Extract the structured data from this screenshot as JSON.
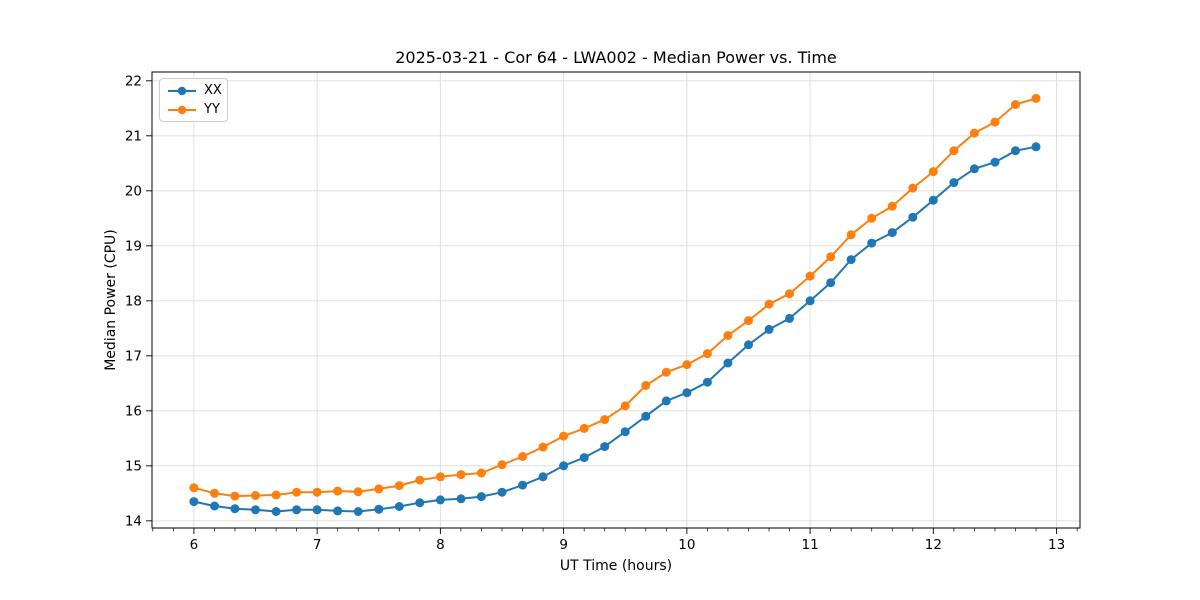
{
  "chart_data": {
    "type": "line",
    "title": "2025-03-21 - Cor 64 - LWA002 - Median Power vs. Time",
    "xlabel": "UT Time (hours)",
    "ylabel": "Median Power (CPU)",
    "xlim": [
      5.66,
      13.19
    ],
    "ylim": [
      13.87,
      22.16
    ],
    "x_ticks": [
      6,
      7,
      8,
      9,
      10,
      11,
      12,
      13
    ],
    "y_ticks": [
      14,
      15,
      16,
      17,
      18,
      19,
      20,
      21,
      22
    ],
    "x_minor_step": 0.166667,
    "grid": true,
    "grid_color": "#dcdcdc",
    "legend_position": "upper-left",
    "x": [
      6.0,
      6.167,
      6.333,
      6.5,
      6.667,
      6.833,
      7.0,
      7.167,
      7.333,
      7.5,
      7.667,
      7.833,
      8.0,
      8.167,
      8.333,
      8.5,
      8.667,
      8.833,
      9.0,
      9.167,
      9.333,
      9.5,
      9.667,
      9.833,
      10.0,
      10.167,
      10.333,
      10.5,
      10.667,
      10.833,
      11.0,
      11.167,
      11.333,
      11.5,
      11.667,
      11.833,
      12.0,
      12.167,
      12.333,
      12.5,
      12.667,
      12.833
    ],
    "series": [
      {
        "name": "XX",
        "color": "#1f77b4",
        "values": [
          14.35,
          14.27,
          14.22,
          14.2,
          14.17,
          14.2,
          14.2,
          14.18,
          14.17,
          14.21,
          14.26,
          14.33,
          14.38,
          14.4,
          14.44,
          14.52,
          14.65,
          14.8,
          15.0,
          15.15,
          15.35,
          15.62,
          15.9,
          16.18,
          16.33,
          16.52,
          16.87,
          17.2,
          17.48,
          17.68,
          18.0,
          18.33,
          18.75,
          19.05,
          19.24,
          19.52,
          19.83,
          20.15,
          20.4,
          20.52,
          20.73,
          20.8
        ]
      },
      {
        "name": "YY",
        "color": "#ff7f0e",
        "values": [
          14.6,
          14.5,
          14.45,
          14.46,
          14.47,
          14.52,
          14.52,
          14.54,
          14.53,
          14.58,
          14.64,
          14.74,
          14.8,
          14.84,
          14.87,
          15.02,
          15.17,
          15.34,
          15.54,
          15.68,
          15.84,
          16.09,
          16.46,
          16.7,
          16.84,
          17.04,
          17.37,
          17.64,
          17.94,
          18.13,
          18.45,
          18.8,
          19.2,
          19.5,
          19.72,
          20.05,
          20.35,
          20.73,
          21.05,
          21.25,
          21.57,
          21.68
        ]
      }
    ]
  }
}
